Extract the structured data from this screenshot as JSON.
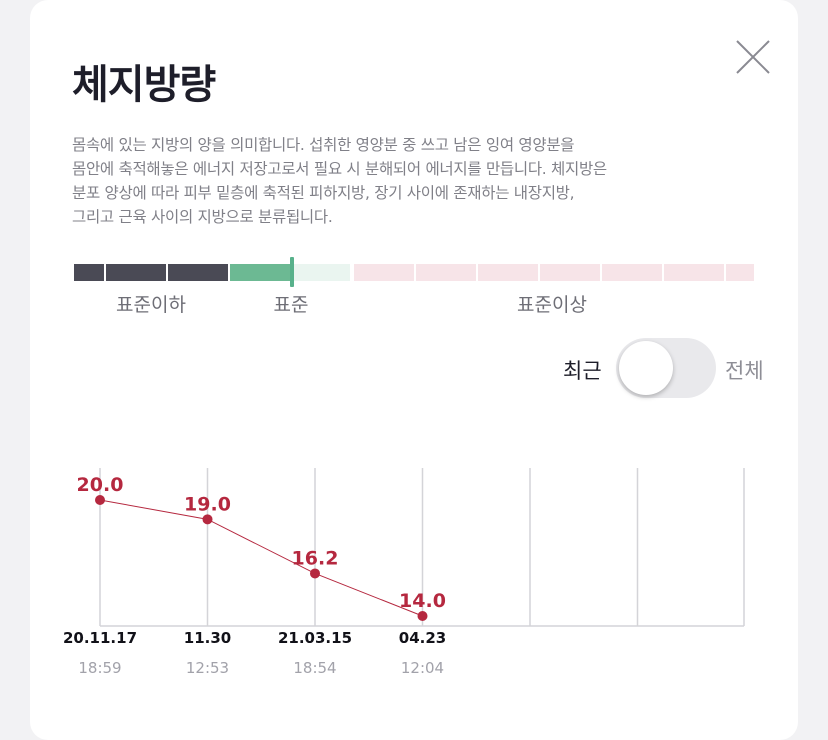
{
  "title": "체지방량",
  "description_lines": [
    "몸속에 있는 지방의 양을 의미합니다. 섭취한 영양분 중 쓰고 남은 잉여 영양분을",
    "몸안에 축적해놓은 에너지 저장고로서 필요 시 분해되어 에너지를 만듭니다. 체지방은",
    "분포 양상에 따라 피부 밑층에 축적된 피하지방, 장기 사이에 존재하는 내장지방,",
    "그리고 근육 사이의 지방으로 분류됩니다."
  ],
  "ranges": {
    "below": "표준이하",
    "standard": "표준",
    "above": "표준이상"
  },
  "toggle": {
    "left_label": "최근",
    "right_label": "전체",
    "selected": "최근"
  },
  "colors": {
    "below": "#4a4a55",
    "standard": "#6cb993",
    "standard_light": "#eaf5f0",
    "above": "#f7e4e8",
    "data": "#b5283f"
  },
  "chart_data": {
    "type": "line",
    "x": [
      "20.11.17",
      "11.30",
      "21.03.15",
      "04.23"
    ],
    "times": [
      "18:59",
      "12:53",
      "18:54",
      "12:04"
    ],
    "series": [
      {
        "values": [
          20.0,
          19.0,
          16.2,
          14.0
        ]
      }
    ],
    "value_labels": [
      "20.0",
      "19.0",
      "16.2",
      "14.0"
    ],
    "total_slots": 6,
    "ylim": [
      14.0,
      20.0
    ],
    "grid": true
  }
}
